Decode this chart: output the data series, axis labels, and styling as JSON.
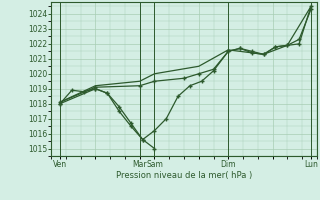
{
  "background_color": "#d4eee4",
  "grid_color": "#a8cdb4",
  "line_color": "#2d5a2d",
  "marker_color": "#2d5a2d",
  "xlabel": "Pression niveau de la mer( hPa )",
  "ylim": [
    1014.5,
    1024.8
  ],
  "yticks": [
    1015,
    1016,
    1017,
    1018,
    1019,
    1020,
    1021,
    1022,
    1023,
    1024
  ],
  "xlim": [
    0,
    9.0
  ],
  "xtick_labels": [
    "Ven",
    "",
    "Mar",
    "Sam",
    "",
    "Dim",
    "",
    "Lun"
  ],
  "xtick_positions": [
    0.3,
    1.5,
    3.0,
    3.5,
    5.0,
    6.0,
    7.5,
    8.8
  ],
  "vlines": [
    0.3,
    3.0,
    3.5,
    6.0,
    8.8
  ],
  "s1_x": [
    0.3,
    0.7,
    1.1,
    1.5,
    1.9,
    2.3,
    2.7,
    3.1,
    3.5,
    3.9,
    4.3,
    4.7,
    5.1,
    5.5,
    6.0,
    6.4,
    6.8,
    7.2,
    7.6,
    8.0,
    8.4,
    8.8
  ],
  "s1_y": [
    1018.0,
    1018.9,
    1018.8,
    1019.0,
    1018.7,
    1017.5,
    1016.5,
    1015.6,
    1016.2,
    1017.0,
    1018.5,
    1019.2,
    1019.5,
    1020.2,
    1021.5,
    1021.7,
    1021.5,
    1021.3,
    1021.8,
    1021.9,
    1022.3,
    1024.3
  ],
  "s2_x": [
    0.3,
    1.5,
    3.0,
    3.5,
    4.5,
    5.0,
    5.5,
    6.0,
    6.4,
    6.8,
    7.2,
    7.6,
    8.0,
    8.4,
    8.8
  ],
  "s2_y": [
    1018.1,
    1019.1,
    1019.2,
    1019.5,
    1019.7,
    1020.0,
    1020.3,
    1021.5,
    1021.7,
    1021.4,
    1021.3,
    1021.8,
    1021.9,
    1022.0,
    1024.5
  ],
  "s3_x": [
    0.3,
    1.5,
    3.0,
    3.5,
    5.0,
    6.0,
    7.2,
    8.0,
    8.8
  ],
  "s3_y": [
    1018.1,
    1019.2,
    1019.5,
    1020.0,
    1020.5,
    1021.6,
    1021.3,
    1021.9,
    1024.5
  ],
  "s4_x": [
    0.3,
    1.5,
    1.9,
    2.3,
    2.7,
    3.1,
    3.5
  ],
  "s4_y": [
    1018.0,
    1019.0,
    1018.7,
    1017.8,
    1016.7,
    1015.6,
    1015.0
  ]
}
